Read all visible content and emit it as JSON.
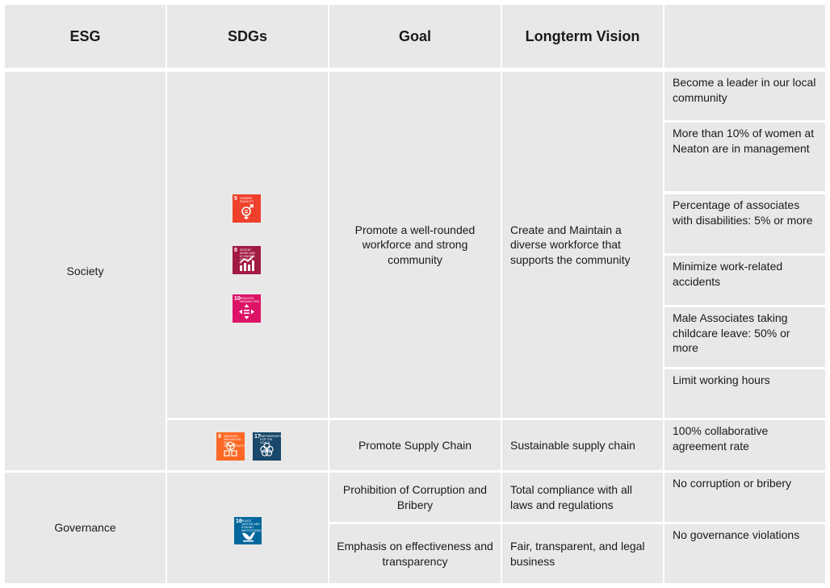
{
  "headers": {
    "esg": "ESG",
    "sdgs": "SDGs",
    "goal": "Goal",
    "vision": "Longterm Vision",
    "targets": ""
  },
  "society": {
    "label": "Society",
    "goal1": "Promote a well-rounded workforce and strong community",
    "vision1": "Create and Maintain a diverse workforce that supports the community",
    "targets": [
      "Become a leader in our local community",
      "More than 10% of women at Neaton are in management",
      "Percentage of associates with disabilities: 5% or more",
      "Minimize work-related accidents",
      "Male Associates taking childcare leave: 50% or more",
      "Limit working hours"
    ],
    "goal2": "Promote Supply Chain",
    "vision2": "Sustainable supply chain",
    "target2": "100% collaborative agreement rate"
  },
  "governance": {
    "label": "Governance",
    "goal1": "Prohibition of Corruption and Bribery",
    "vision1": "Total compliance with all laws and regulations",
    "target1": "No corruption or bribery",
    "goal2": "Emphasis on effectiveness and transparency",
    "vision2": "Fair, transparent, and legal business",
    "target2": "No governance violations"
  },
  "sdg_icons": [
    {
      "num": "5",
      "text": "Gender Equality",
      "color": "#ef402b",
      "icon": "gender-equality-icon"
    },
    {
      "num": "8",
      "text": "Decent Work and Economic Growth",
      "color": "#a21942",
      "icon": "economic-growth-icon"
    },
    {
      "num": "10",
      "text": "Reduced Inequalities",
      "color": "#dd1367",
      "icon": "reduced-inequalities-icon"
    },
    {
      "num": "9",
      "text": "Industry, Innovation and Infrastructure",
      "color": "#fd6925",
      "icon": "industry-innovation-icon"
    },
    {
      "num": "17",
      "text": "Partnerships for the Goals",
      "color": "#19486a",
      "icon": "partnerships-icon"
    },
    {
      "num": "16",
      "text": "Peace, Justice and Strong Institutions",
      "color": "#00689d",
      "icon": "peace-justice-icon"
    }
  ]
}
